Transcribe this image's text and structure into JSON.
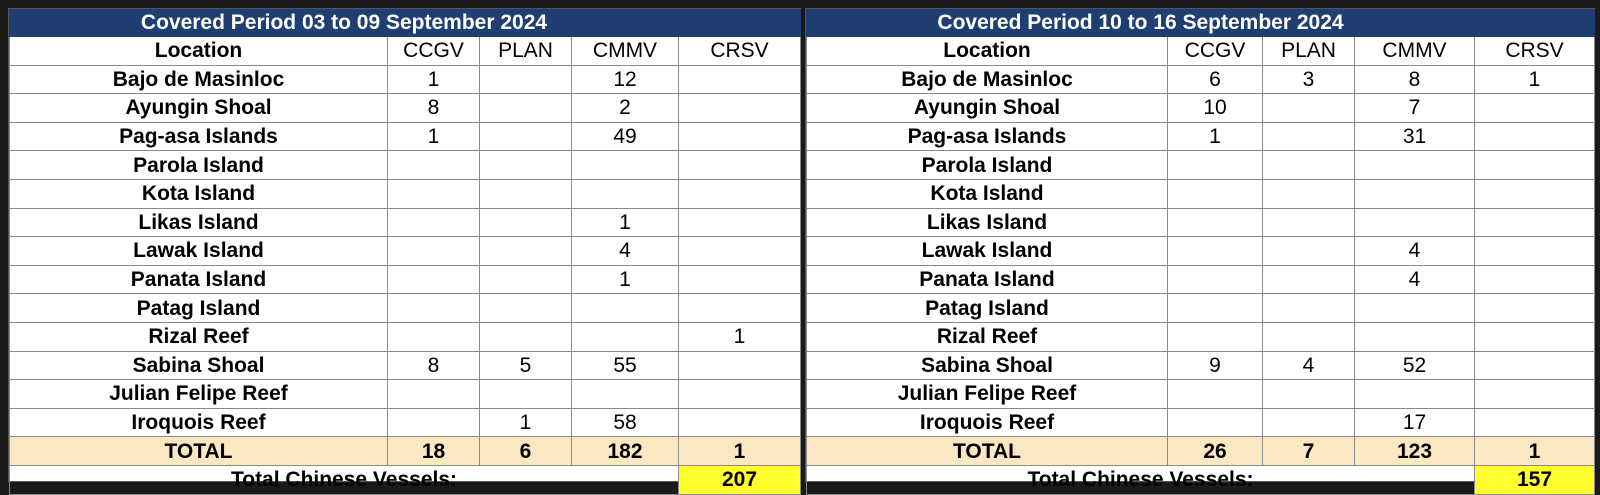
{
  "tables": [
    {
      "period_title": "Covered Period 03 to 09 September 2024",
      "headers": [
        "Location",
        "CCGV",
        "PLAN",
        "CMMV",
        "CRSV"
      ],
      "rows": [
        {
          "location": "Bajo de Masinloc",
          "ccgv": "1",
          "plan": "",
          "cmmv": "12",
          "crsv": ""
        },
        {
          "location": "Ayungin Shoal",
          "ccgv": "8",
          "plan": "",
          "cmmv": "2",
          "crsv": ""
        },
        {
          "location": "Pag-asa Islands",
          "ccgv": "1",
          "plan": "",
          "cmmv": "49",
          "crsv": ""
        },
        {
          "location": "Parola Island",
          "ccgv": "",
          "plan": "",
          "cmmv": "",
          "crsv": ""
        },
        {
          "location": "Kota Island",
          "ccgv": "",
          "plan": "",
          "cmmv": "",
          "crsv": ""
        },
        {
          "location": "Likas Island",
          "ccgv": "",
          "plan": "",
          "cmmv": "1",
          "crsv": ""
        },
        {
          "location": "Lawak Island",
          "ccgv": "",
          "plan": "",
          "cmmv": "4",
          "crsv": ""
        },
        {
          "location": "Panata Island",
          "ccgv": "",
          "plan": "",
          "cmmv": "1",
          "crsv": ""
        },
        {
          "location": "Patag Island",
          "ccgv": "",
          "plan": "",
          "cmmv": "",
          "crsv": ""
        },
        {
          "location": "Rizal Reef",
          "ccgv": "",
          "plan": "",
          "cmmv": "",
          "crsv": "1"
        },
        {
          "location": "Sabina Shoal",
          "ccgv": "8",
          "plan": "5",
          "cmmv": "55",
          "crsv": ""
        },
        {
          "location": "Julian Felipe Reef",
          "ccgv": "",
          "plan": "",
          "cmmv": "",
          "crsv": ""
        },
        {
          "location": "Iroquois Reef",
          "ccgv": "",
          "plan": "1",
          "cmmv": "58",
          "crsv": ""
        }
      ],
      "total": {
        "label": "TOTAL",
        "ccgv": "18",
        "plan": "6",
        "cmmv": "182",
        "crsv": "1"
      },
      "grand_total": {
        "label": "Total Chinese Vessels:",
        "value": "207"
      }
    },
    {
      "period_title": "Covered Period 10 to 16 September 2024",
      "headers": [
        "Location",
        "CCGV",
        "PLAN",
        "CMMV",
        "CRSV"
      ],
      "rows": [
        {
          "location": "Bajo de Masinloc",
          "ccgv": "6",
          "plan": "3",
          "cmmv": "8",
          "crsv": "1"
        },
        {
          "location": "Ayungin Shoal",
          "ccgv": "10",
          "plan": "",
          "cmmv": "7",
          "crsv": ""
        },
        {
          "location": "Pag-asa Islands",
          "ccgv": "1",
          "plan": "",
          "cmmv": "31",
          "crsv": ""
        },
        {
          "location": "Parola Island",
          "ccgv": "",
          "plan": "",
          "cmmv": "",
          "crsv": ""
        },
        {
          "location": "Kota Island",
          "ccgv": "",
          "plan": "",
          "cmmv": "",
          "crsv": ""
        },
        {
          "location": "Likas Island",
          "ccgv": "",
          "plan": "",
          "cmmv": "",
          "crsv": ""
        },
        {
          "location": "Lawak Island",
          "ccgv": "",
          "plan": "",
          "cmmv": "4",
          "crsv": ""
        },
        {
          "location": "Panata Island",
          "ccgv": "",
          "plan": "",
          "cmmv": "4",
          "crsv": ""
        },
        {
          "location": "Patag Island",
          "ccgv": "",
          "plan": "",
          "cmmv": "",
          "crsv": ""
        },
        {
          "location": "Rizal Reef",
          "ccgv": "",
          "plan": "",
          "cmmv": "",
          "crsv": ""
        },
        {
          "location": "Sabina Shoal",
          "ccgv": "9",
          "plan": "4",
          "cmmv": "52",
          "crsv": ""
        },
        {
          "location": "Julian Felipe Reef",
          "ccgv": "",
          "plan": "",
          "cmmv": "",
          "crsv": ""
        },
        {
          "location": "Iroquois Reef",
          "ccgv": "",
          "plan": "",
          "cmmv": "17",
          "crsv": ""
        }
      ],
      "total": {
        "label": "TOTAL",
        "ccgv": "26",
        "plan": "7",
        "cmmv": "123",
        "crsv": "1"
      },
      "grand_total": {
        "label": "Total Chinese Vessels:",
        "value": "157"
      }
    }
  ],
  "colors": {
    "header_bg": "#1f3f73",
    "header_text": "#ffffff",
    "total_row_bg": "#fbe8c3",
    "grand_total_bg": "#ffff2e",
    "page_bg": "#1a1a1a"
  }
}
